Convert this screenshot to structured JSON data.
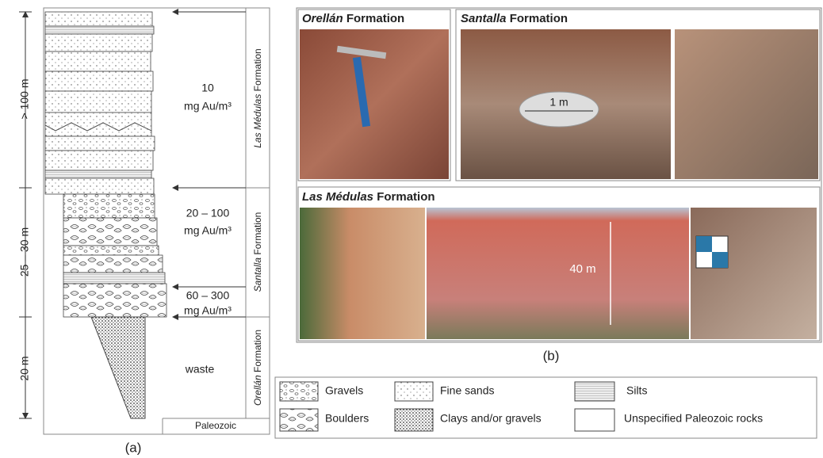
{
  "column": {
    "thickness_labels": [
      "> 100 m",
      "25 – 30 m",
      "20 m"
    ],
    "grades": [
      {
        "value": "10",
        "unit": "mg Au/m³"
      },
      {
        "value": "20 – 100",
        "unit": "mg Au/m³"
      },
      {
        "value": "60 – 300",
        "unit": "mg Au/m³"
      }
    ],
    "waste": "waste",
    "formations": [
      {
        "name": "Las Médulas",
        "suffix": "Formation"
      },
      {
        "name": "Santalla",
        "suffix": "Formation"
      },
      {
        "name": "Orellán",
        "suffix": "Formation"
      }
    ],
    "basement": "Paleozoic",
    "caption": "(a)"
  },
  "photos": {
    "panels": [
      {
        "name": "Orellán",
        "suffix": "Formation"
      },
      {
        "name": "Santalla",
        "suffix": "Formation"
      },
      {
        "name": "Las Médulas",
        "suffix": "Formation"
      }
    ],
    "scale_labels": [
      "1 m",
      "40 m"
    ],
    "caption": "(b)"
  },
  "legend": {
    "items": [
      "Gravels",
      "Boulders",
      "Fine sands",
      "Clays and/or gravels",
      "Silts",
      "Unspecified Paleozoic rocks"
    ]
  }
}
